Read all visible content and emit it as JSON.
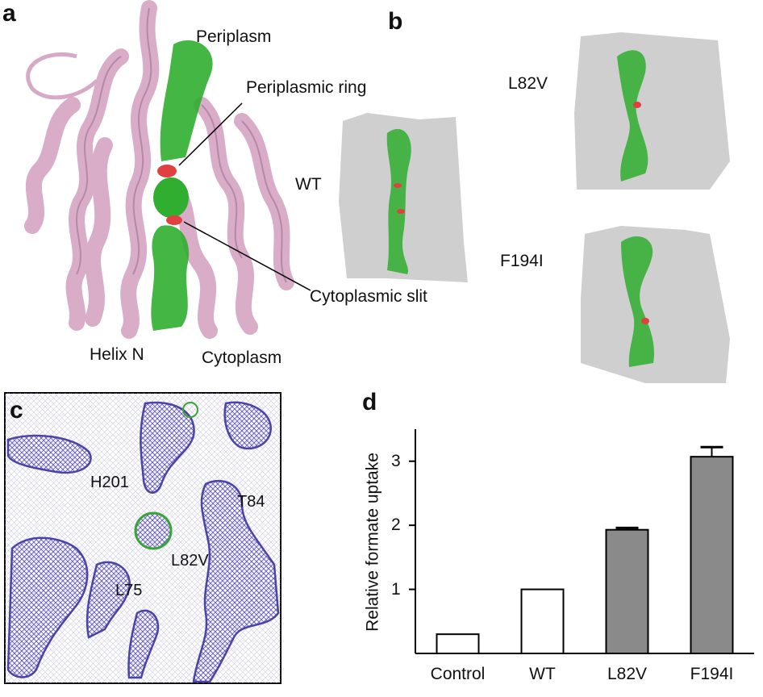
{
  "panels": {
    "a": {
      "letter": "a",
      "labels": {
        "periplasm": "Periplasm",
        "periplasmic_ring": "Periplasmic ring",
        "cytoplasmic_slit": "Cytoplasmic slit",
        "helix_n": "Helix N",
        "cytoplasm": "Cytoplasm"
      }
    },
    "b": {
      "letter": "b",
      "variants": [
        "WT",
        "L82V",
        "F194I"
      ]
    },
    "c": {
      "letter": "c",
      "residues": [
        "H201",
        "T84",
        "L82V",
        "L75"
      ]
    },
    "d": {
      "letter": "d"
    }
  },
  "colors": {
    "protein": "#d7a9c6",
    "protein_edge": "#a06f93",
    "channel": "#2fae2f",
    "constriction": "#e04040",
    "surface": "#cfcfcf",
    "mesh": "#5b53b8",
    "bar_fill_mutant": "#8a8a8a"
  },
  "chart_data": {
    "type": "bar",
    "categories": [
      "Control",
      "WT",
      "L82V",
      "F194I"
    ],
    "values": [
      0.3,
      1.0,
      1.93,
      3.07
    ],
    "errors": [
      0,
      0,
      0.03,
      0.15
    ],
    "fills": [
      "white",
      "white",
      "grey",
      "grey"
    ],
    "ylabel": "Relative formate uptake",
    "xlabel": "",
    "yticks": [
      1,
      2,
      3
    ],
    "ylim": [
      0,
      3.5
    ],
    "grid": false
  }
}
